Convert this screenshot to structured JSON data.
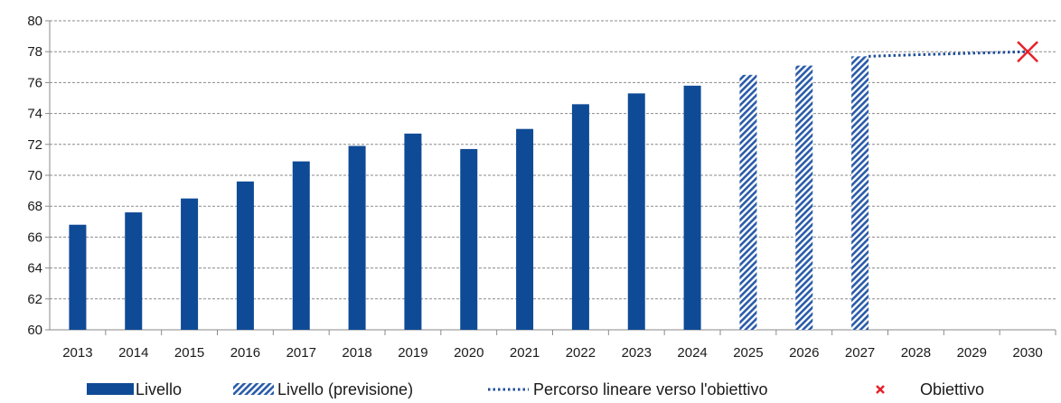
{
  "chart_data": {
    "type": "bar",
    "title": "",
    "xlabel": "",
    "ylabel": "",
    "ylim": [
      60,
      80
    ],
    "yticks": [
      60,
      62,
      64,
      66,
      68,
      70,
      72,
      74,
      76,
      78,
      80
    ],
    "grid": "horizontal dashed",
    "categories": [
      "2013",
      "2014",
      "2015",
      "2016",
      "2017",
      "2018",
      "2019",
      "2020",
      "2021",
      "2022",
      "2023",
      "2024",
      "2025",
      "2026",
      "2027",
      "2028",
      "2029",
      "2030"
    ],
    "series": [
      {
        "name": "Livello",
        "style": "solid",
        "color": "#0f4a96",
        "points": [
          {
            "x": "2013",
            "y": 66.8
          },
          {
            "x": "2014",
            "y": 67.6
          },
          {
            "x": "2015",
            "y": 68.5
          },
          {
            "x": "2016",
            "y": 69.6
          },
          {
            "x": "2017",
            "y": 70.9
          },
          {
            "x": "2018",
            "y": 71.9
          },
          {
            "x": "2019",
            "y": 72.7
          },
          {
            "x": "2020",
            "y": 71.7
          },
          {
            "x": "2021",
            "y": 73.0
          },
          {
            "x": "2022",
            "y": 74.6
          },
          {
            "x": "2023",
            "y": 75.3
          },
          {
            "x": "2024",
            "y": 75.8
          }
        ]
      },
      {
        "name": "Livello (previsione)",
        "style": "hatched",
        "color": "#2a5ba8",
        "points": [
          {
            "x": "2025",
            "y": 76.5
          },
          {
            "x": "2026",
            "y": 77.1
          },
          {
            "x": "2027",
            "y": 77.7
          }
        ]
      },
      {
        "name": "Percorso lineare verso l'obiettivo",
        "style": "dotted-line",
        "color": "#1f4f9a",
        "points": [
          {
            "x": "2027",
            "y": 77.7
          },
          {
            "x": "2028",
            "y": 77.8
          },
          {
            "x": "2029",
            "y": 77.9
          },
          {
            "x": "2030",
            "y": 78.0
          }
        ]
      },
      {
        "name": "Obiettivo",
        "style": "x-marker",
        "color": "#e8202a",
        "points": [
          {
            "x": "2030",
            "y": 78.0
          }
        ]
      }
    ],
    "legend": {
      "placement": "bottom",
      "items": [
        "Livello",
        "Livello (previsione)",
        "Percorso lineare verso l'obiettivo",
        "Obiettivo"
      ]
    }
  }
}
